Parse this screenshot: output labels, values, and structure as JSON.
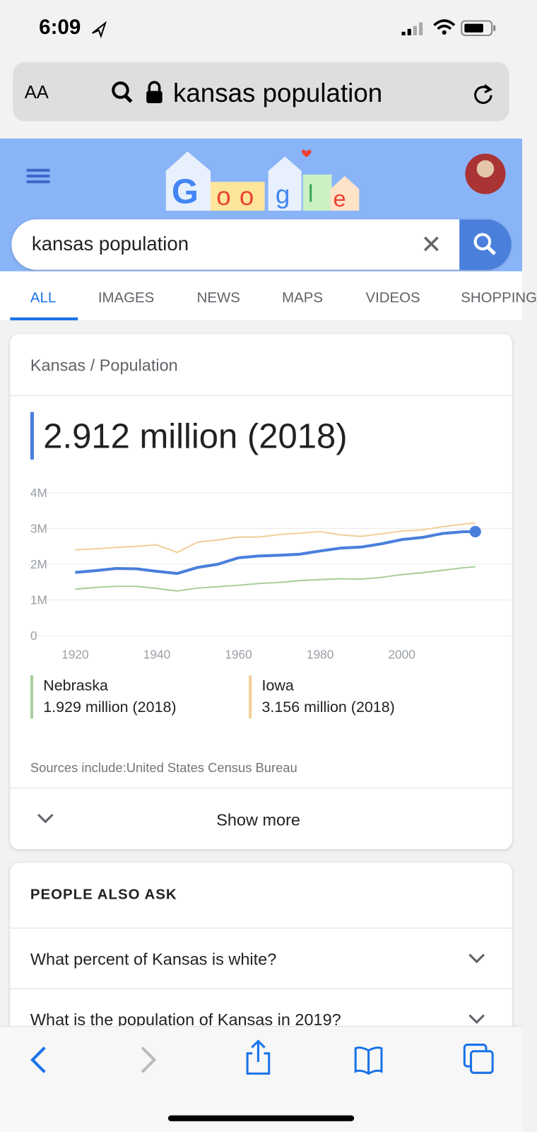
{
  "status_bar": {
    "time": "6:09"
  },
  "address_bar": {
    "text_size": "AA",
    "query": "kansas population"
  },
  "search": {
    "query": "kansas population",
    "tabs": [
      "ALL",
      "IMAGES",
      "NEWS",
      "MAPS",
      "VIDEOS",
      "SHOPPING"
    ]
  },
  "card": {
    "breadcrumb": [
      "Kansas",
      "Population"
    ],
    "separator": "/",
    "headline": "2.912 million (2018)",
    "legend_values": [
      "1.929 million (2018)",
      "3.156 million (2018)"
    ],
    "sources": "Sources include:United States Census Bureau",
    "show_more": "Show more"
  },
  "chart_data": {
    "type": "line",
    "x": [
      1920,
      1925,
      1930,
      1935,
      1940,
      1945,
      1950,
      1955,
      1960,
      1965,
      1970,
      1975,
      1980,
      1985,
      1990,
      1995,
      2000,
      2005,
      2010,
      2015,
      2018
    ],
    "series": [
      {
        "color": "#4a7fdc",
        "values": [
          1.77,
          1.82,
          1.88,
          1.87,
          1.8,
          1.74,
          1.91,
          2.0,
          2.18,
          2.23,
          2.25,
          2.28,
          2.37,
          2.45,
          2.48,
          2.57,
          2.69,
          2.75,
          2.86,
          2.91,
          2.912
        ]
      },
      {
        "name": "Nebraska",
        "color": "#a9cf9b",
        "values": [
          1.3,
          1.35,
          1.38,
          1.38,
          1.32,
          1.25,
          1.33,
          1.37,
          1.41,
          1.46,
          1.49,
          1.54,
          1.57,
          1.59,
          1.58,
          1.63,
          1.71,
          1.76,
          1.83,
          1.9,
          1.929
        ]
      },
      {
        "name": "Iowa",
        "color": "#f2cf9a",
        "values": [
          2.4,
          2.43,
          2.47,
          2.5,
          2.54,
          2.33,
          2.62,
          2.68,
          2.76,
          2.76,
          2.83,
          2.87,
          2.91,
          2.82,
          2.78,
          2.85,
          2.93,
          2.96,
          3.05,
          3.12,
          3.156
        ]
      }
    ],
    "xlim": [
      1909,
      2027
    ],
    "xticks": [
      1920,
      1940,
      1960,
      1980,
      2000
    ],
    "ylim": [
      0,
      4
    ],
    "yticks": [
      0,
      {
        "value": 1,
        "label": "1M"
      },
      {
        "value": 2,
        "label": "2M"
      },
      {
        "value": 3,
        "label": "3M"
      },
      {
        "value": 4,
        "label": "4M"
      }
    ],
    "grid": true
  },
  "people_also_ask": {
    "title": "PEOPLE ALSO ASK",
    "questions": [
      "What percent of Kansas is white?",
      "What is the population of Kansas in 2019?"
    ]
  }
}
